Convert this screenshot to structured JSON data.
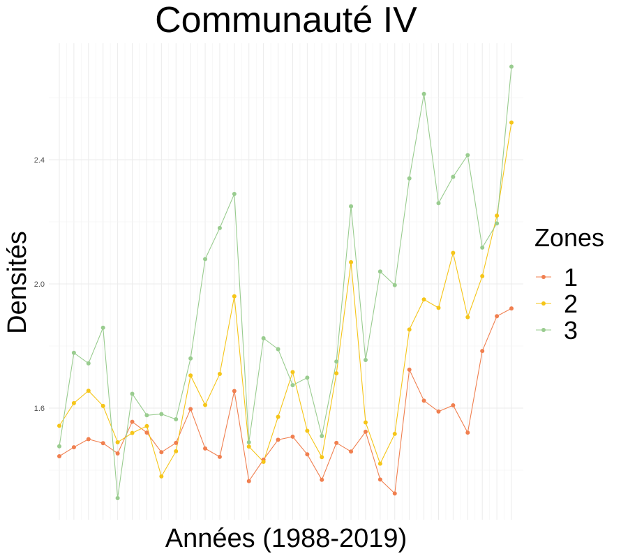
{
  "chart_data": {
    "type": "line",
    "title": "Communauté IV",
    "xlabel": "Années (1988-2019)",
    "ylabel": "Densités",
    "x": [
      1988,
      1989,
      1990,
      1991,
      1992,
      1993,
      1994,
      1995,
      1996,
      1997,
      1998,
      1999,
      2000,
      2001,
      2002,
      2003,
      2004,
      2005,
      2006,
      2007,
      2008,
      2009,
      2010,
      2011,
      2012,
      2013,
      2014,
      2015,
      2016,
      2017,
      2018,
      2019
    ],
    "xlim": [
      1988,
      2019
    ],
    "ylim": [
      1.33,
      2.74
    ],
    "y_ticks": [
      1.6,
      2.0,
      2.4
    ],
    "y_tick_labels": [
      "1.6",
      "2.0",
      "2.4"
    ],
    "grid": true,
    "legend": {
      "title": "Zones",
      "position": "right"
    },
    "series": [
      {
        "name": "1",
        "color": "#F07F4F",
        "values": [
          1.445,
          1.474,
          1.5,
          1.487,
          1.454,
          1.556,
          1.521,
          1.458,
          1.488,
          1.597,
          1.47,
          1.443,
          1.655,
          1.365,
          1.434,
          1.498,
          1.508,
          1.451,
          1.369,
          1.488,
          1.46,
          1.524,
          1.37,
          1.325,
          1.724,
          1.624,
          1.589,
          1.609,
          1.521,
          1.784,
          1.896,
          1.921
        ]
      },
      {
        "name": "2",
        "color": "#F5C518",
        "values": [
          1.543,
          1.616,
          1.656,
          1.607,
          1.49,
          1.52,
          1.542,
          1.38,
          1.461,
          1.705,
          1.61,
          1.71,
          1.96,
          1.476,
          1.427,
          1.572,
          1.716,
          1.527,
          1.442,
          1.712,
          2.07,
          1.554,
          1.421,
          1.517,
          1.853,
          1.95,
          1.923,
          2.1,
          1.893,
          2.025,
          2.22,
          2.52
        ]
      },
      {
        "name": "3",
        "color": "#99CC8F",
        "values": [
          1.477,
          1.778,
          1.744,
          1.859,
          1.31,
          1.646,
          1.577,
          1.581,
          1.564,
          1.76,
          2.08,
          2.18,
          2.29,
          1.49,
          1.825,
          1.79,
          1.674,
          1.698,
          1.51,
          1.75,
          2.25,
          1.755,
          2.04,
          1.996,
          2.34,
          2.612,
          2.26,
          2.345,
          2.415,
          2.117,
          2.195,
          2.7
        ]
      }
    ]
  }
}
